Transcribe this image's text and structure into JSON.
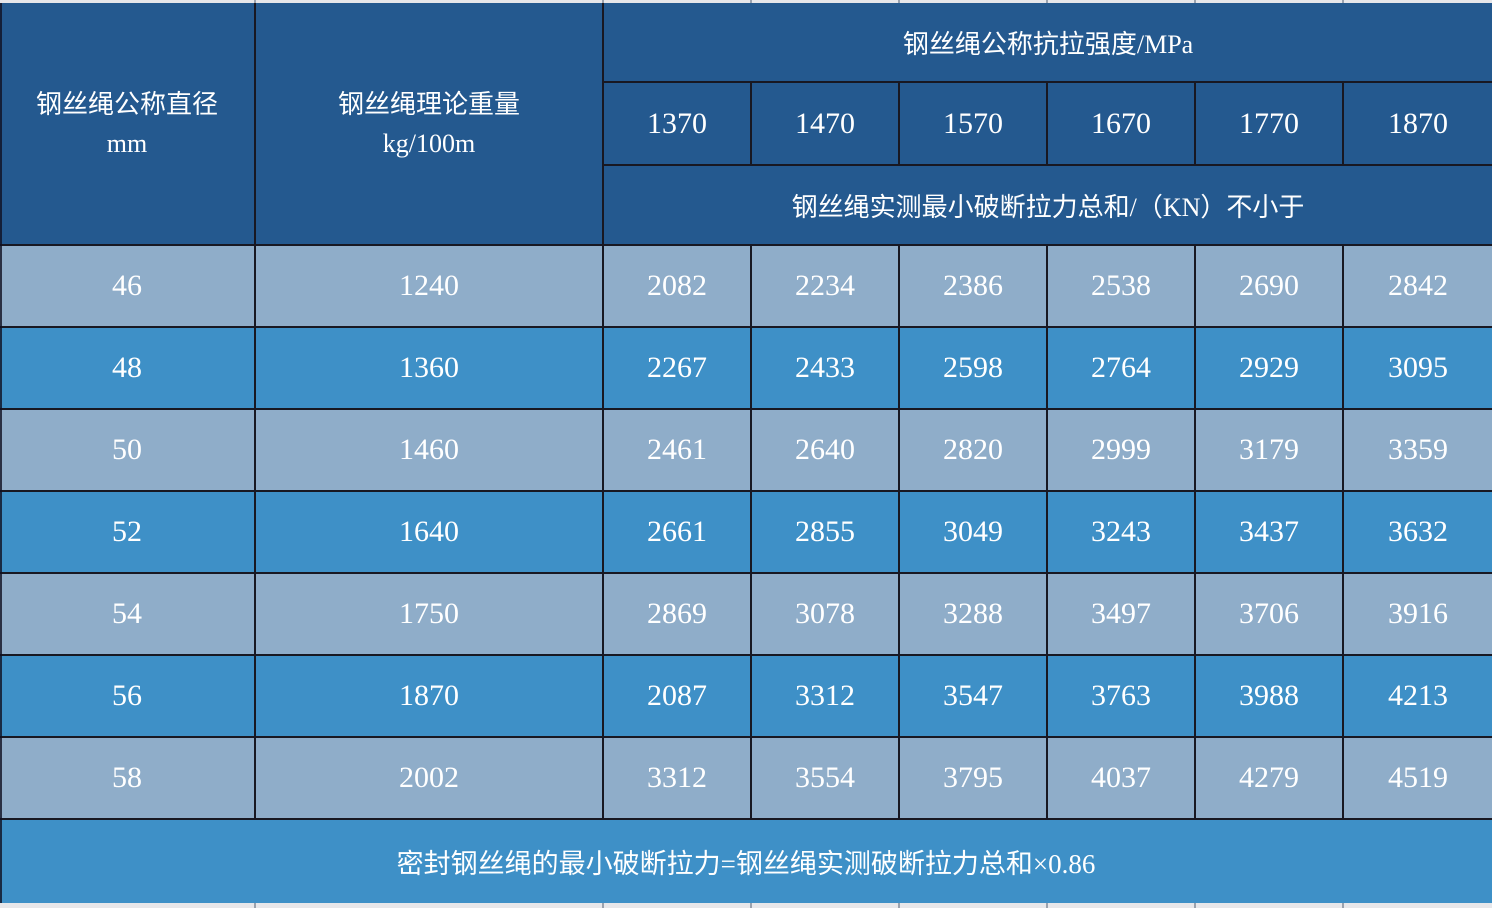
{
  "table": {
    "header": {
      "col_diameter": {
        "line1": "钢丝绳公称直径",
        "line2": "mm"
      },
      "col_weight": {
        "line1": "钢丝绳理论重量",
        "line2": "kg/100m"
      },
      "strength_title": "钢丝绳公称抗拉强度/MPa",
      "strength_grades": [
        "1370",
        "1470",
        "1570",
        "1670",
        "1770",
        "1870"
      ],
      "breaking_force_title": "钢丝绳实测最小破断拉力总和/（KN）不小于"
    },
    "rows": [
      {
        "diameter": "46",
        "weight": "1240",
        "values": [
          "2082",
          "2234",
          "2386",
          "2538",
          "2690",
          "2842"
        ]
      },
      {
        "diameter": "48",
        "weight": "1360",
        "values": [
          "2267",
          "2433",
          "2598",
          "2764",
          "2929",
          "3095"
        ]
      },
      {
        "diameter": "50",
        "weight": "1460",
        "values": [
          "2461",
          "2640",
          "2820",
          "2999",
          "3179",
          "3359"
        ]
      },
      {
        "diameter": "52",
        "weight": "1640",
        "values": [
          "2661",
          "2855",
          "3049",
          "3243",
          "3437",
          "3632"
        ]
      },
      {
        "diameter": "54",
        "weight": "1750",
        "values": [
          "2869",
          "3078",
          "3288",
          "3497",
          "3706",
          "3916"
        ]
      },
      {
        "diameter": "56",
        "weight": "1870",
        "values": [
          "2087",
          "3312",
          "3547",
          "3763",
          "3988",
          "4213"
        ]
      },
      {
        "diameter": "58",
        "weight": "2002",
        "values": [
          "3312",
          "3554",
          "3795",
          "4037",
          "4279",
          "4519"
        ]
      }
    ],
    "footer_note": "密封钢丝绳的最小破断拉力=钢丝绳实测破断拉力总和×0.86"
  },
  "chart_data": {
    "type": "table",
    "title": "钢丝绳公称抗拉强度/MPa",
    "columns": [
      "钢丝绳公称直径 mm",
      "钢丝绳理论重量 kg/100m",
      "1370",
      "1470",
      "1570",
      "1670",
      "1770",
      "1870"
    ],
    "rows": [
      [
        46,
        1240,
        2082,
        2234,
        2386,
        2538,
        2690,
        2842
      ],
      [
        48,
        1360,
        2267,
        2433,
        2598,
        2764,
        2929,
        3095
      ],
      [
        50,
        1460,
        2461,
        2640,
        2820,
        2999,
        3179,
        3359
      ],
      [
        52,
        1640,
        2661,
        2855,
        3049,
        3243,
        3437,
        3632
      ],
      [
        54,
        1750,
        2869,
        3078,
        3288,
        3497,
        3706,
        3916
      ],
      [
        56,
        1870,
        2087,
        3312,
        3547,
        3763,
        3988,
        4213
      ],
      [
        58,
        2002,
        3312,
        3554,
        3795,
        4037,
        4279,
        4519
      ]
    ],
    "note": "密封钢丝绳的最小破断拉力=钢丝绳实测破断拉力总和×0.86"
  },
  "colors": {
    "header_bg": "#24598F",
    "row_light_bg": "#8FADC9",
    "row_dark_bg": "#3E90C7",
    "footer_bg": "#3E90C7",
    "grid_border": "#181822",
    "text": "#FFFFFF",
    "edge_strip": "#E7E7EA"
  }
}
